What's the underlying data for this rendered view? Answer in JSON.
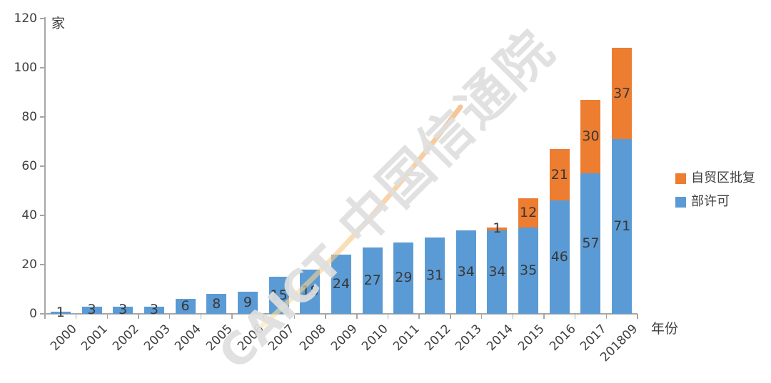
{
  "watermark": {
    "brand_latin": "CAICT",
    "brand_cjk": "中国信通院",
    "swoosh_color_start": "#FBE3A3",
    "swoosh_color_end": "#EE9D4D"
  },
  "chart_data": {
    "type": "bar",
    "stacked": true,
    "title": "",
    "unit_label": "家",
    "xlabel": "年份",
    "ylabel": "",
    "ylim": [
      0,
      120
    ],
    "ytick_step": 20,
    "grid": false,
    "legend_position": "right",
    "categories": [
      "2000",
      "2001",
      "2002",
      "2003",
      "2004",
      "2005",
      "2006",
      "2007",
      "2008",
      "2009",
      "2010",
      "2011",
      "2012",
      "2013",
      "2014",
      "2015",
      "2016",
      "2017",
      "201809"
    ],
    "series": [
      {
        "name": "部许可",
        "color": "#5B9BD5",
        "values": [
          1,
          3,
          3,
          3,
          6,
          8,
          9,
          15,
          18,
          24,
          27,
          29,
          31,
          34,
          34,
          35,
          46,
          57,
          71
        ]
      },
      {
        "name": "自贸区批复",
        "color": "#ED7D31",
        "values": [
          0,
          0,
          0,
          0,
          0,
          0,
          0,
          0,
          0,
          0,
          0,
          0,
          0,
          0,
          1,
          12,
          21,
          30,
          37
        ]
      }
    ],
    "legend_order": [
      "自贸区批复",
      "部许可"
    ],
    "colors": {
      "axis": "#A6A6A6",
      "tick_text": "#3F3F3F",
      "data_label": "#383838",
      "blue": "#5B9BD5",
      "orange": "#ED7D31"
    }
  }
}
